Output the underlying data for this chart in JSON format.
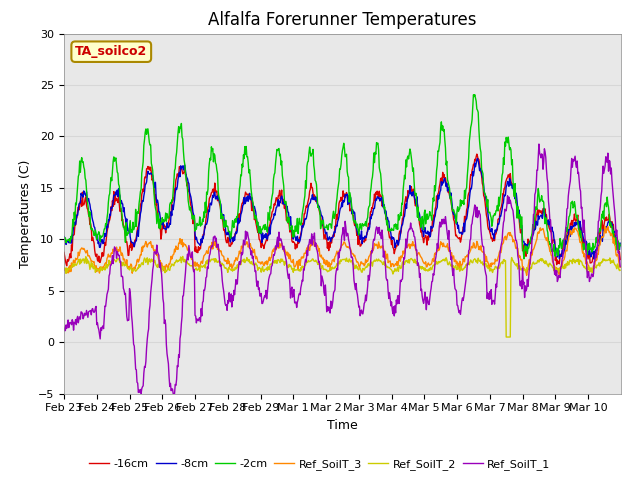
{
  "title": "Alfalfa Forerunner Temperatures",
  "xlabel": "Time",
  "ylabel": "Temperatures (C)",
  "ylim": [
    -5,
    30
  ],
  "annotation_text": "TA_soilco2",
  "annotation_color": "#cc0000",
  "annotation_bg": "#ffffcc",
  "annotation_border": "#aa8800",
  "background_color": "#ffffff",
  "plot_bg": "#e8e8e8",
  "line_colors": {
    "-16cm": "#dd0000",
    "-8cm": "#0000cc",
    "-2cm": "#00cc00",
    "Ref_SoilT_3": "#ff8800",
    "Ref_SoilT_2": "#cccc00",
    "Ref_SoilT_1": "#9900bb"
  },
  "legend_labels": [
    "-16cm",
    "-8cm",
    "-2cm",
    "Ref_SoilT_3",
    "Ref_SoilT_2",
    "Ref_SoilT_1"
  ],
  "title_fontsize": 12,
  "axis_label_fontsize": 9,
  "tick_label_fontsize": 8,
  "grid_color": "#d0d0d0",
  "grid_alpha": 0.7
}
